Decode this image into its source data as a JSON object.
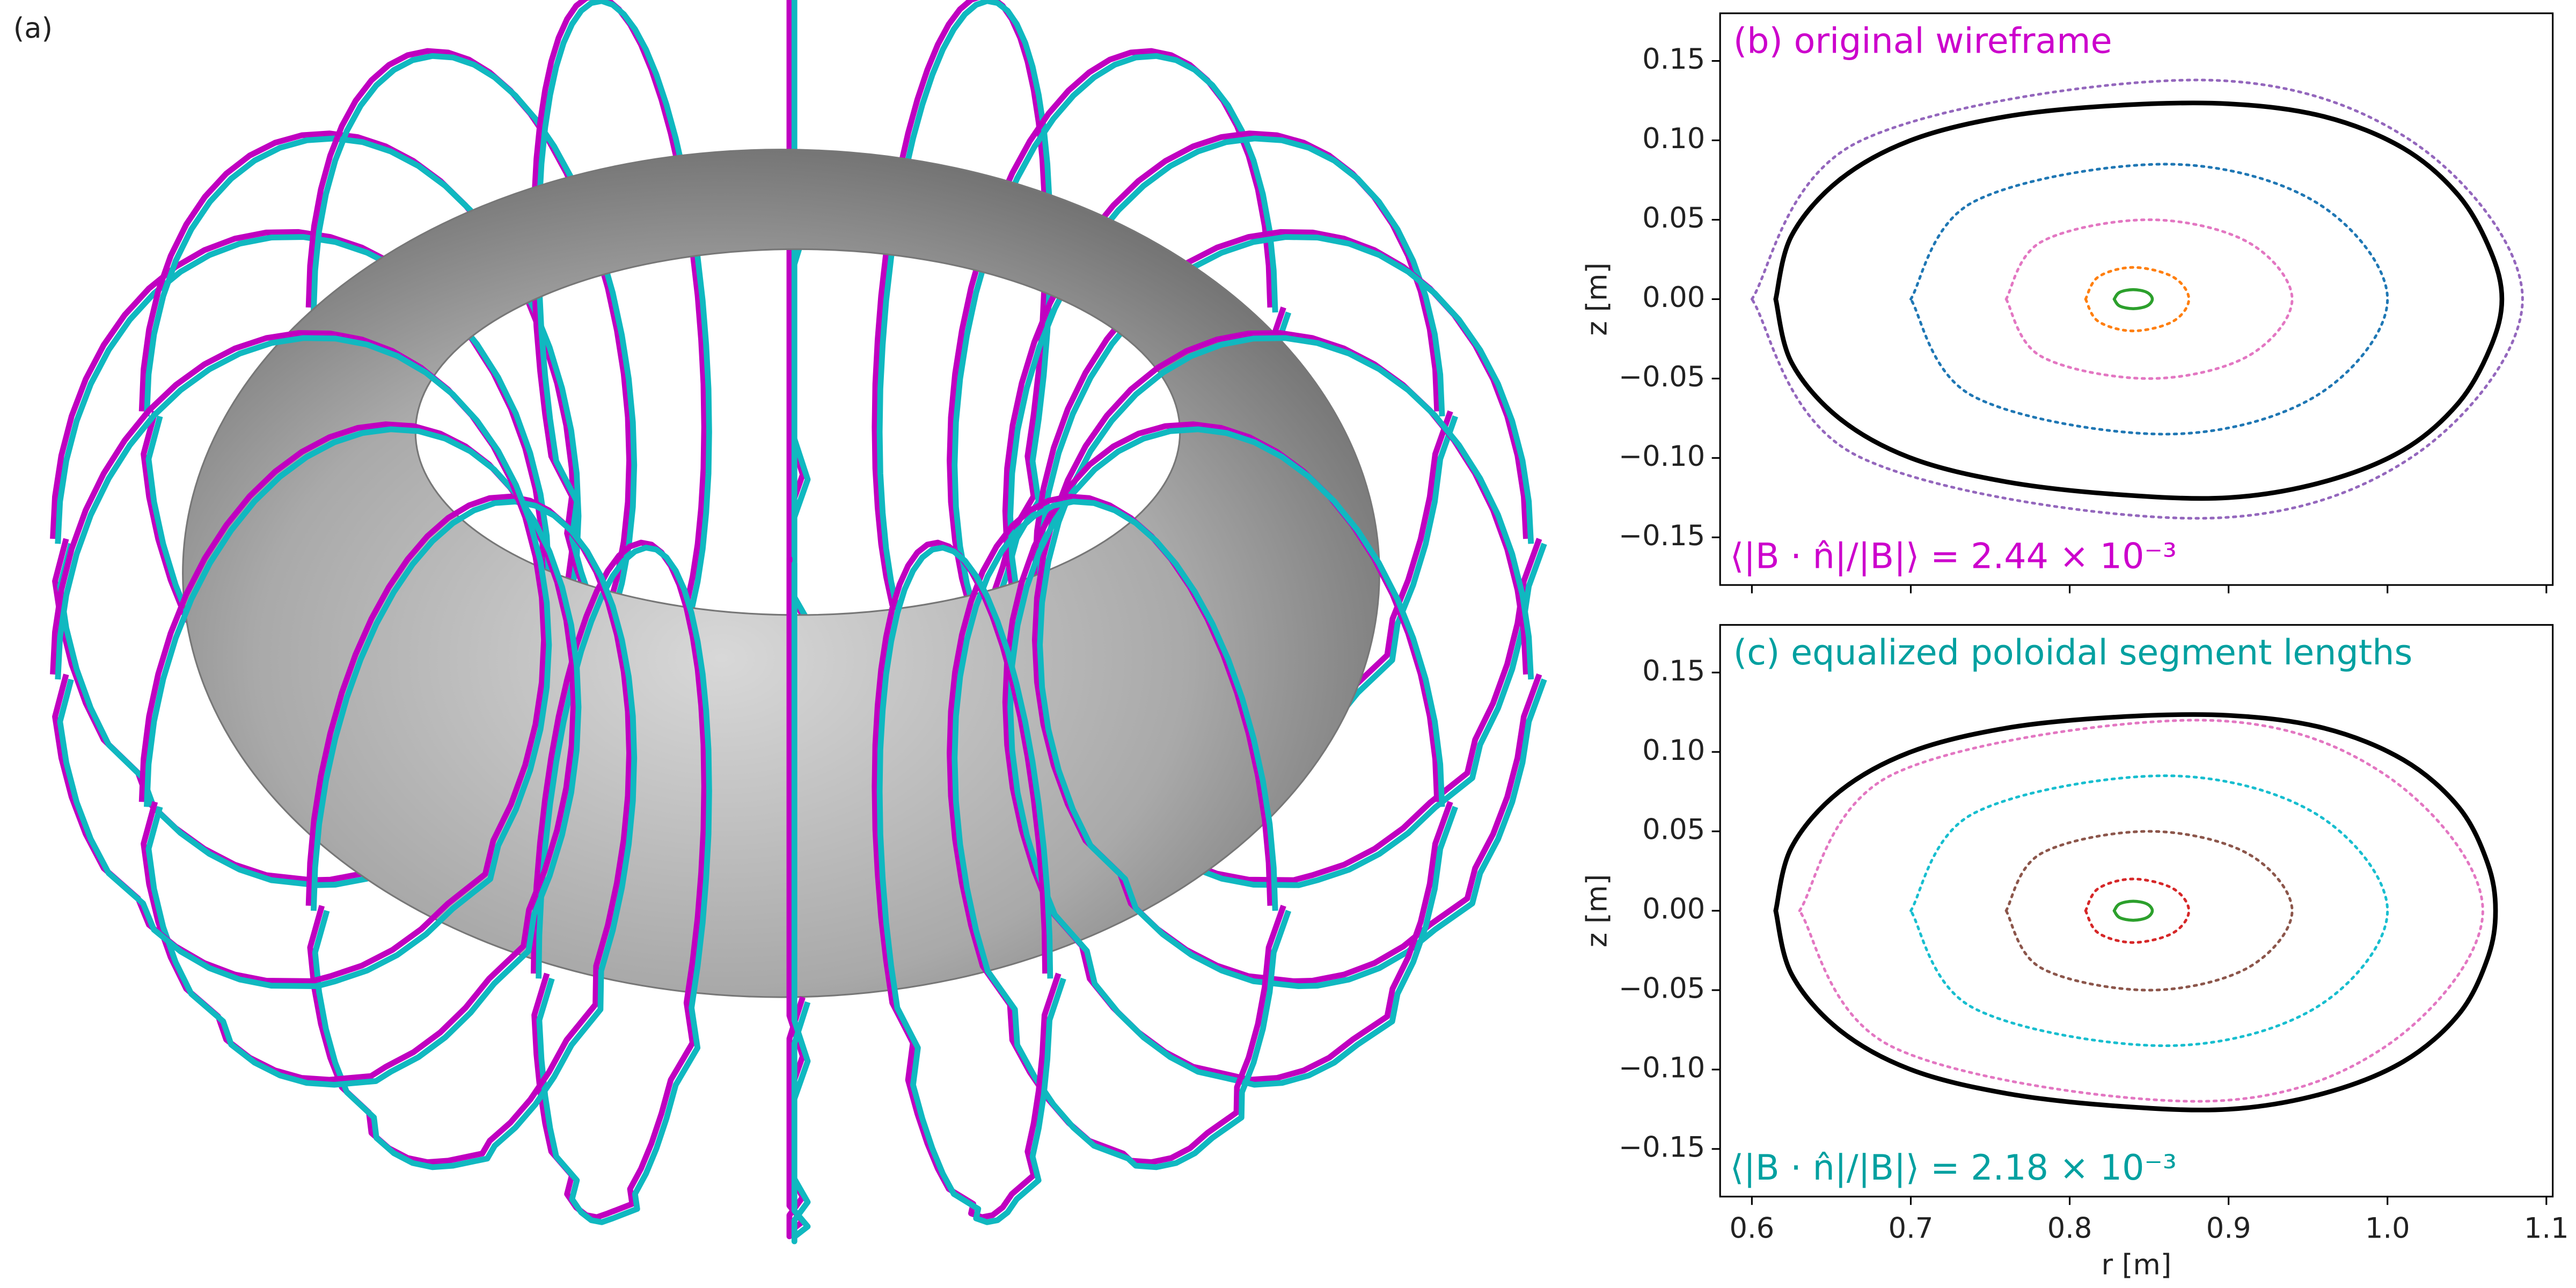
{
  "panel_a": {
    "label": "(a)"
  },
  "chart_data": [
    {
      "type": "line",
      "title": "(b) original wireframe",
      "title_color": "#cc00cc",
      "annotation": "⟨|B · n̂|/|B|⟩ = 2.44 × 10⁻³",
      "ylabel": "z [m]",
      "xlim": [
        0.58,
        1.104
      ],
      "ylim": [
        -0.18,
        0.18
      ],
      "xticks": [
        0.6,
        0.7,
        0.8,
        0.9,
        1.0,
        1.1
      ],
      "xtick_labels": false,
      "yticks": [
        {
          "value": -0.15,
          "label": "−0.15"
        },
        {
          "value": -0.1,
          "label": "−0.10"
        },
        {
          "value": -0.05,
          "label": "−0.05"
        },
        {
          "value": 0,
          "label": "0.00"
        },
        0.05,
        {
          "value": 0.1,
          "label": "0.10"
        },
        0.15
      ],
      "series": [
        {
          "color": "#9467bd",
          "linestyle": "dotted",
          "x": [
            0.6,
            0.667,
            0.88,
            1.016,
            1.085,
            1.016,
            0.88,
            0.667,
            0.6
          ],
          "values": [
            0,
            0.099,
            0.138,
            0.099,
            0,
            -0.099,
            -0.138,
            -0.099,
            0
          ]
        },
        {
          "color": "#1f77b4",
          "linestyle": "dotted",
          "x": [
            0.7,
            0.739,
            0.86,
            0.955,
            1.0,
            0.955,
            0.86,
            0.739,
            0.7
          ],
          "values": [
            0,
            0.061,
            0.085,
            0.061,
            0,
            -0.061,
            -0.085,
            -0.061,
            0
          ]
        },
        {
          "color": "#e377c2",
          "linestyle": "dotted",
          "x": [
            0.76,
            0.782,
            0.85,
            0.912,
            0.94,
            0.912,
            0.85,
            0.782,
            0.76
          ],
          "values": [
            0,
            0.036,
            0.05,
            0.036,
            0,
            -0.036,
            -0.05,
            -0.036,
            0
          ]
        },
        {
          "color": "#ff7f0e",
          "linestyle": "dotted",
          "x": [
            0.81,
            0.818,
            0.84,
            0.865,
            0.875,
            0.865,
            0.84,
            0.818,
            0.81
          ],
          "values": [
            0,
            0.014,
            0.02,
            0.014,
            0,
            -0.014,
            -0.02,
            -0.014,
            0
          ]
        },
        {
          "color": "#2ca02c",
          "linestyle": "solid",
          "x": [
            0.828,
            0.8314,
            0.84,
            0.8486,
            0.852,
            0.8486,
            0.84,
            0.8314,
            0.828
          ],
          "values": [
            0,
            0.0043,
            0.006,
            0.0043,
            0,
            -0.0043,
            -0.006,
            -0.0043,
            0
          ]
        },
        {
          "color": "#000000",
          "linestyle": "bold",
          "x": [
            0.615,
            0.625,
            0.655,
            0.7,
            0.76,
            0.83,
            0.9,
            0.96,
            1.01,
            1.045,
            1.065,
            1.072,
            1.065,
            1.045,
            1.01,
            0.96,
            0.9,
            0.83,
            0.76,
            0.7,
            0.655,
            0.625,
            0.615
          ],
          "values": [
            0,
            0.04,
            0.075,
            0.1,
            0.115,
            0.122,
            0.123,
            0.115,
            0.095,
            0.065,
            0.03,
            0,
            -0.03,
            -0.065,
            -0.095,
            -0.115,
            -0.125,
            -0.123,
            -0.115,
            -0.1,
            -0.075,
            -0.04,
            0
          ]
        }
      ]
    },
    {
      "type": "line",
      "title": "(c) equalized poloidal segment lengths",
      "title_color": "#00a0a0",
      "annotation": "⟨|B · n̂|/|B|⟩ = 2.18 × 10⁻³",
      "ylabel": "z [m]",
      "xlabel": "r [m]",
      "xlim": [
        0.58,
        1.104
      ],
      "ylim": [
        -0.18,
        0.18
      ],
      "xticks": [
        0.6,
        0.7,
        0.8,
        0.9,
        {
          "value": 1.0,
          "label": "1.0"
        },
        1.1
      ],
      "yticks": [
        {
          "value": -0.15,
          "label": "−0.15"
        },
        {
          "value": -0.1,
          "label": "−0.10"
        },
        {
          "value": -0.05,
          "label": "−0.05"
        },
        {
          "value": 0,
          "label": "0.00"
        },
        0.05,
        {
          "value": 0.1,
          "label": "0.10"
        },
        0.15
      ],
      "series": [
        {
          "color": "#e377c2",
          "linestyle": "dotted",
          "x": [
            0.63,
            0.689,
            0.88,
            0.998,
            1.06,
            0.998,
            0.88,
            0.689,
            0.63
          ],
          "values": [
            0,
            0.086,
            0.12,
            0.086,
            0,
            -0.086,
            -0.12,
            -0.086,
            0
          ]
        },
        {
          "color": "#17becf",
          "linestyle": "dotted",
          "x": [
            0.7,
            0.739,
            0.86,
            0.955,
            1.0,
            0.955,
            0.86,
            0.739,
            0.7
          ],
          "values": [
            0,
            0.061,
            0.085,
            0.061,
            0,
            -0.061,
            -0.085,
            -0.061,
            0
          ]
        },
        {
          "color": "#8c564b",
          "linestyle": "dotted",
          "x": [
            0.76,
            0.782,
            0.85,
            0.912,
            0.94,
            0.912,
            0.85,
            0.782,
            0.76
          ],
          "values": [
            0,
            0.036,
            0.05,
            0.036,
            0,
            -0.036,
            -0.05,
            -0.036,
            0
          ]
        },
        {
          "color": "#d62728",
          "linestyle": "dotted",
          "x": [
            0.81,
            0.818,
            0.84,
            0.865,
            0.875,
            0.865,
            0.84,
            0.818,
            0.81
          ],
          "values": [
            0,
            0.014,
            0.02,
            0.014,
            0,
            -0.014,
            -0.02,
            -0.014,
            0
          ]
        },
        {
          "color": "#2ca02c",
          "linestyle": "solid",
          "x": [
            0.828,
            0.8314,
            0.84,
            0.8486,
            0.852,
            0.8486,
            0.84,
            0.8314,
            0.828
          ],
          "values": [
            0,
            0.0043,
            0.006,
            0.0043,
            0,
            -0.0043,
            -0.006,
            -0.0043,
            0
          ]
        },
        {
          "color": "#000000",
          "linestyle": "bold",
          "x": [
            0.615,
            0.625,
            0.655,
            0.7,
            0.76,
            0.83,
            0.9,
            0.96,
            1.01,
            1.045,
            1.063,
            1.068,
            1.063,
            1.045,
            1.01,
            0.96,
            0.9,
            0.83,
            0.76,
            0.7,
            0.655,
            0.625,
            0.615
          ],
          "values": [
            0,
            0.04,
            0.075,
            0.1,
            0.115,
            0.122,
            0.123,
            0.115,
            0.095,
            0.065,
            0.03,
            0,
            -0.03,
            -0.065,
            -0.095,
            -0.115,
            -0.125,
            -0.123,
            -0.115,
            -0.1,
            -0.075,
            -0.04,
            0
          ]
        }
      ]
    }
  ]
}
